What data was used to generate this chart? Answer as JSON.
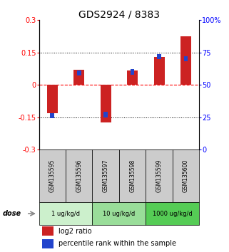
{
  "title": "GDS2924 / 8383",
  "samples": [
    "GSM135595",
    "GSM135596",
    "GSM135597",
    "GSM135598",
    "GSM135599",
    "GSM135600"
  ],
  "log2_ratio": [
    -0.13,
    0.07,
    -0.175,
    0.065,
    0.13,
    0.225
  ],
  "percentile_rank": [
    26,
    59,
    27,
    60,
    72,
    70
  ],
  "ylim_left": [
    -0.3,
    0.3
  ],
  "ylim_right": [
    0,
    100
  ],
  "yticks_left": [
    -0.3,
    -0.15,
    0,
    0.15,
    0.3
  ],
  "yticks_right": [
    0,
    25,
    50,
    75,
    100
  ],
  "ytick_labels_left": [
    "-0.3",
    "-0.15",
    "0",
    "0.15",
    "0.3"
  ],
  "ytick_labels_right": [
    "0",
    "25",
    "50",
    "75",
    "100%"
  ],
  "hlines_dotted": [
    0.15,
    -0.15
  ],
  "dose_groups": [
    {
      "label": "1 ug/kg/d",
      "samples": 2,
      "color": "#ccf0cc"
    },
    {
      "label": "10 ug/kg/d",
      "samples": 2,
      "color": "#99dd99"
    },
    {
      "label": "1000 ug/kg/d",
      "samples": 2,
      "color": "#55cc55"
    }
  ],
  "bar_color_red": "#cc2222",
  "bar_color_blue": "#2244cc",
  "bar_width": 0.4,
  "blue_sq_size": 0.012,
  "legend_red": "log2 ratio",
  "legend_blue": "percentile rank within the sample",
  "dose_label": "dose",
  "sample_box_color": "#cccccc",
  "title_fontsize": 10,
  "tick_fontsize": 7,
  "legend_fontsize": 7
}
